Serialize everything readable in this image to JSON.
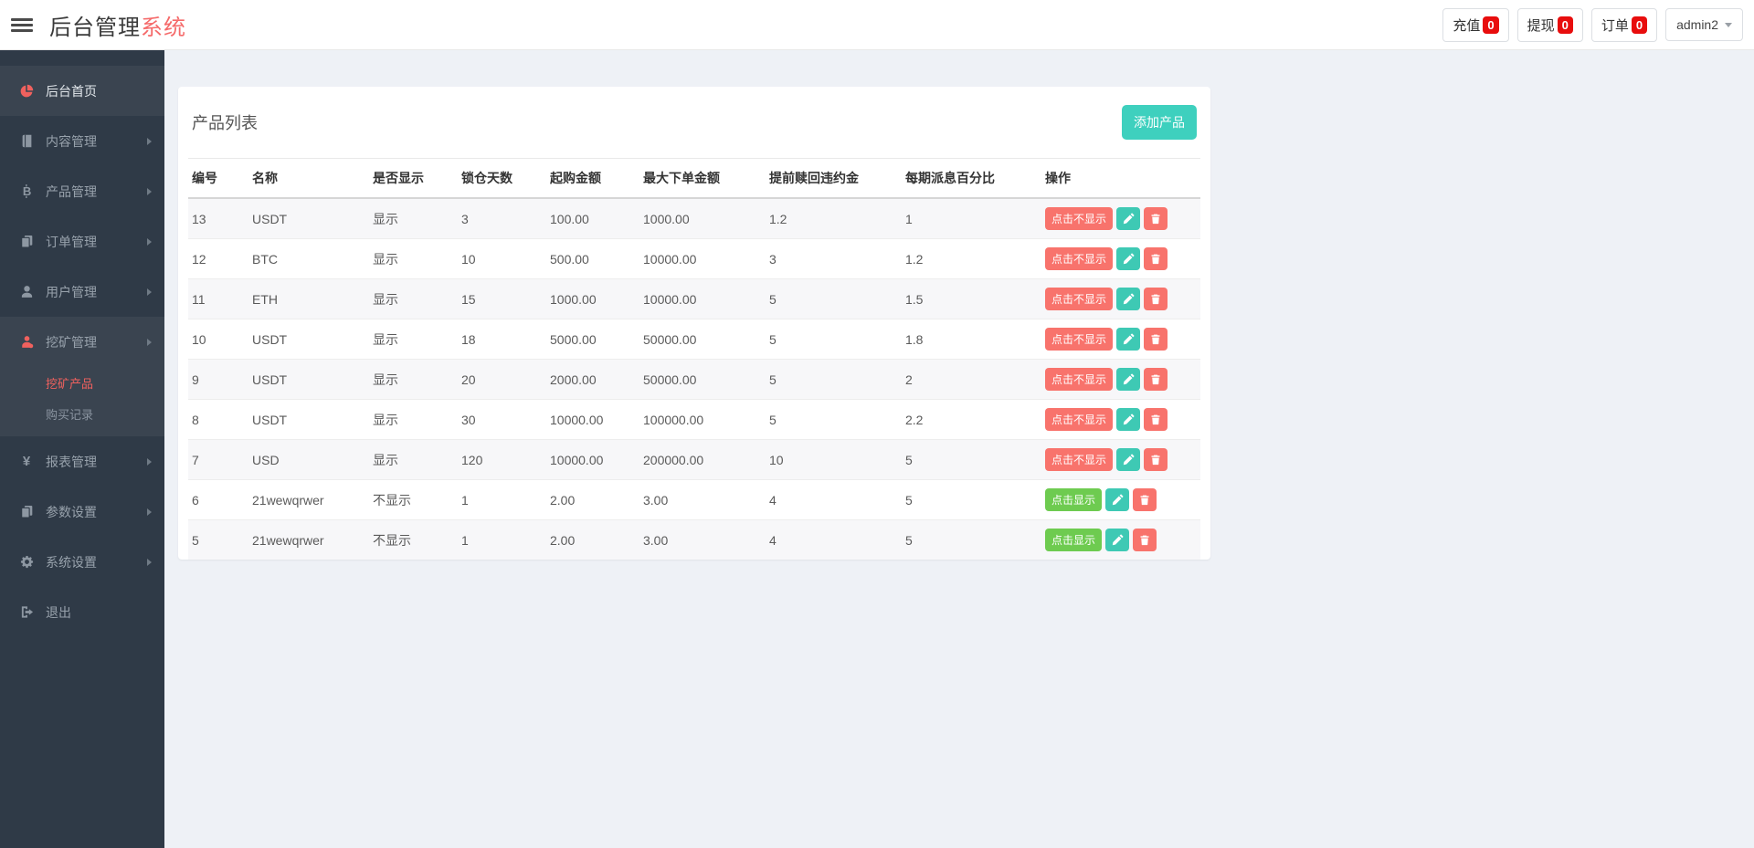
{
  "header": {
    "title_primary": "后台管理",
    "title_accent": "系统",
    "nav_buttons": [
      {
        "name": "recharge",
        "label": "充值",
        "badge": "0"
      },
      {
        "name": "withdraw",
        "label": "提现",
        "badge": "0"
      },
      {
        "name": "order",
        "label": "订单",
        "badge": "0"
      }
    ],
    "user": {
      "label": "admin2"
    }
  },
  "sidebar": {
    "items": [
      {
        "name": "dashboard",
        "label": "后台首页",
        "icon": "dashboard-icon",
        "icon_color": "red",
        "active": true
      },
      {
        "name": "content",
        "label": "内容管理",
        "icon": "book-icon",
        "has_children": true
      },
      {
        "name": "product",
        "label": "产品管理",
        "icon": "bitcoin-icon",
        "has_children": true
      },
      {
        "name": "order",
        "label": "订单管理",
        "icon": "files-icon",
        "has_children": true
      },
      {
        "name": "user",
        "label": "用户管理",
        "icon": "user-icon",
        "has_children": true
      },
      {
        "name": "mining",
        "label": "挖矿管理",
        "icon": "miner-icon",
        "icon_color": "red",
        "has_children": true,
        "expanded": true,
        "children": [
          {
            "name": "mining-product",
            "label": "挖矿产品",
            "active": true
          },
          {
            "name": "purchase-record",
            "label": "购买记录"
          }
        ]
      },
      {
        "name": "report",
        "label": "报表管理",
        "icon": "yen-icon",
        "has_children": true
      },
      {
        "name": "params",
        "label": "参数设置",
        "icon": "files-icon",
        "has_children": true
      },
      {
        "name": "system",
        "label": "系统设置",
        "icon": "gears-icon",
        "has_children": true
      },
      {
        "name": "logout",
        "label": "退出",
        "icon": "logout-icon"
      }
    ]
  },
  "main": {
    "card_title": "产品列表",
    "add_button_label": "添加产品",
    "table": {
      "columns": [
        "编号",
        "名称",
        "是否显示",
        "锁仓天数",
        "起购金额",
        "最大下单金额",
        "提前赎回违约金",
        "每期派息百分比",
        "操作"
      ],
      "rows": [
        {
          "cells": [
            "13",
            "USDT",
            "显示",
            "3",
            "100.00",
            "1000.00",
            "1.2",
            "1"
          ],
          "action_label": "点击不显示",
          "action_style": "red"
        },
        {
          "cells": [
            "12",
            "BTC",
            "显示",
            "10",
            "500.00",
            "10000.00",
            "3",
            "1.2"
          ],
          "action_label": "点击不显示",
          "action_style": "red"
        },
        {
          "cells": [
            "11",
            "ETH",
            "显示",
            "15",
            "1000.00",
            "10000.00",
            "5",
            "1.5"
          ],
          "action_label": "点击不显示",
          "action_style": "red"
        },
        {
          "cells": [
            "10",
            "USDT",
            "显示",
            "18",
            "5000.00",
            "50000.00",
            "5",
            "1.8"
          ],
          "action_label": "点击不显示",
          "action_style": "red"
        },
        {
          "cells": [
            "9",
            "USDT",
            "显示",
            "20",
            "2000.00",
            "50000.00",
            "5",
            "2"
          ],
          "action_label": "点击不显示",
          "action_style": "red"
        },
        {
          "cells": [
            "8",
            "USDT",
            "显示",
            "30",
            "10000.00",
            "100000.00",
            "5",
            "2.2"
          ],
          "action_label": "点击不显示",
          "action_style": "red"
        },
        {
          "cells": [
            "7",
            "USD",
            "显示",
            "120",
            "10000.00",
            "200000.00",
            "10",
            "5"
          ],
          "action_label": "点击不显示",
          "action_style": "red"
        },
        {
          "cells": [
            "6",
            "21wewqrwer",
            "不显示",
            "1",
            "2.00",
            "3.00",
            "4",
            "5"
          ],
          "action_label": "点击显示",
          "action_style": "green"
        },
        {
          "cells": [
            "5",
            "21wewqrwer",
            "不显示",
            "1",
            "2.00",
            "3.00",
            "4",
            "5"
          ],
          "action_label": "点击显示",
          "action_style": "green"
        }
      ]
    }
  },
  "colors": {
    "accent_red": "#f56a6a",
    "badge_red": "#e80d0d",
    "add_button_teal": "#3ed0be",
    "edit_button_teal": "#3ec9b4",
    "toggle_green": "#6ecb50",
    "toggle_red": "#f8736c",
    "sidebar_bg": "#2f3a47",
    "sidebar_highlight": "#3a4450",
    "page_bg": "#eef1f6"
  }
}
